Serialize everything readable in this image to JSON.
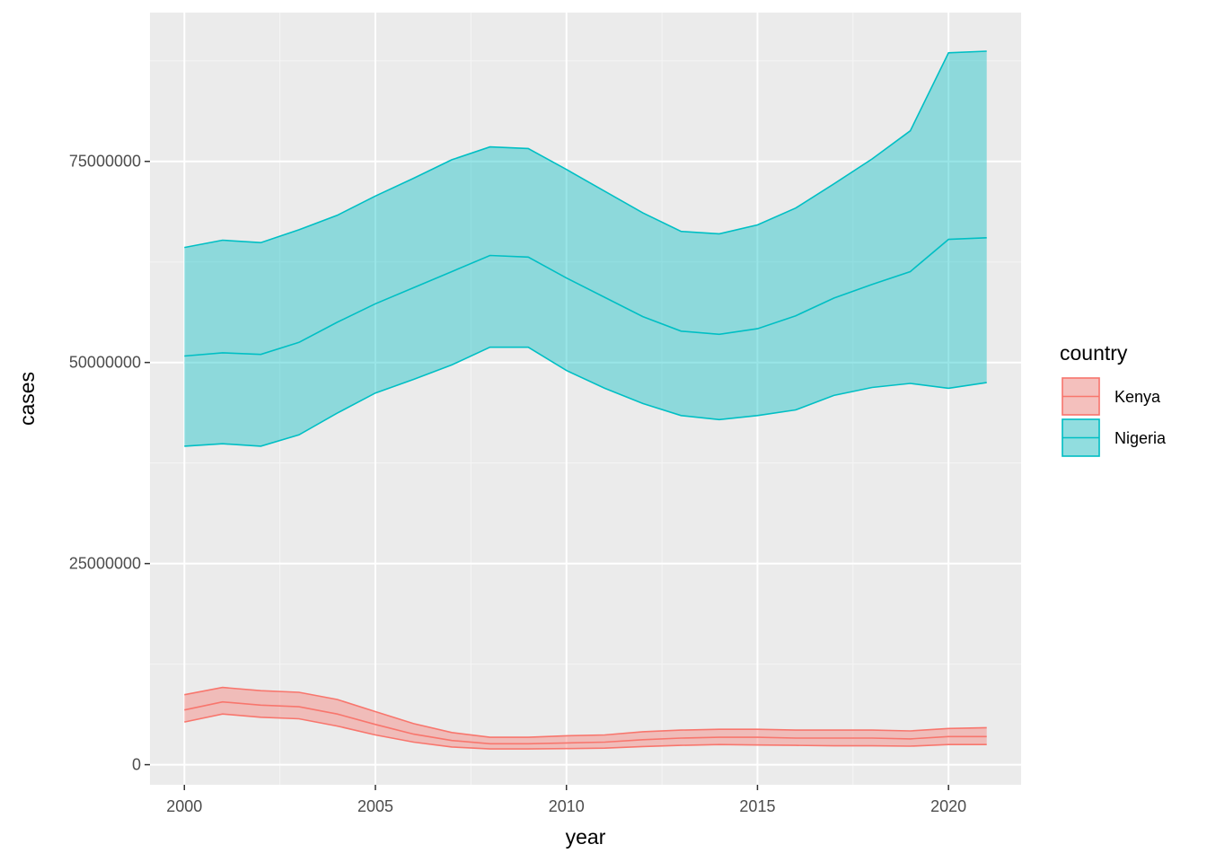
{
  "chart_data": {
    "type": "area",
    "xlabel": "year",
    "ylabel": "cases",
    "xlim": [
      1999.1,
      2021.9
    ],
    "ylim": [
      -2500000,
      93500000
    ],
    "x_ticks": [
      2000,
      2005,
      2010,
      2015,
      2020
    ],
    "y_ticks": [
      0,
      25000000,
      50000000,
      75000000
    ],
    "grid": true,
    "legend": {
      "title": "country",
      "position": "right"
    },
    "x": [
      2000,
      2001,
      2002,
      2003,
      2004,
      2005,
      2006,
      2007,
      2008,
      2009,
      2010,
      2011,
      2012,
      2013,
      2014,
      2015,
      2016,
      2017,
      2018,
      2019,
      2020,
      2021
    ],
    "series": [
      {
        "name": "Kenya",
        "color": "#F8766D",
        "fill": "#F8766D",
        "median": [
          6800000,
          7800000,
          7400000,
          7200000,
          6300000,
          5000000,
          3800000,
          3000000,
          2600000,
          2600000,
          2700000,
          2800000,
          3100000,
          3300000,
          3400000,
          3400000,
          3300000,
          3300000,
          3300000,
          3200000,
          3500000,
          3500000
        ],
        "lower": [
          5300000,
          6300000,
          5900000,
          5700000,
          4800000,
          3700000,
          2800000,
          2200000,
          1950000,
          1950000,
          2000000,
          2050000,
          2250000,
          2400000,
          2500000,
          2450000,
          2400000,
          2350000,
          2350000,
          2300000,
          2500000,
          2500000
        ],
        "upper": [
          8700000,
          9600000,
          9200000,
          9000000,
          8100000,
          6600000,
          5100000,
          4000000,
          3400000,
          3400000,
          3600000,
          3700000,
          4100000,
          4300000,
          4400000,
          4400000,
          4300000,
          4300000,
          4300000,
          4200000,
          4500000,
          4600000
        ]
      },
      {
        "name": "Nigeria",
        "color": "#00BFC4",
        "fill": "#00BFC4",
        "median": [
          50800000,
          51200000,
          51000000,
          52500000,
          55000000,
          57300000,
          59300000,
          61300000,
          63300000,
          63100000,
          60500000,
          58100000,
          55700000,
          53900000,
          53500000,
          54200000,
          55800000,
          58000000,
          59700000,
          61300000,
          65300000,
          65500000
        ],
        "lower": [
          39600000,
          39900000,
          39600000,
          41000000,
          43700000,
          46200000,
          47900000,
          49700000,
          51900000,
          51900000,
          49000000,
          46800000,
          44900000,
          43400000,
          42900000,
          43400000,
          44100000,
          45900000,
          46900000,
          47400000,
          46800000,
          47500000
        ],
        "upper": [
          64300000,
          65200000,
          64900000,
          66500000,
          68300000,
          70700000,
          72900000,
          75200000,
          76800000,
          76600000,
          74000000,
          71300000,
          68600000,
          66300000,
          66000000,
          67100000,
          69200000,
          72200000,
          75300000,
          78800000,
          88500000,
          88700000
        ]
      }
    ]
  }
}
